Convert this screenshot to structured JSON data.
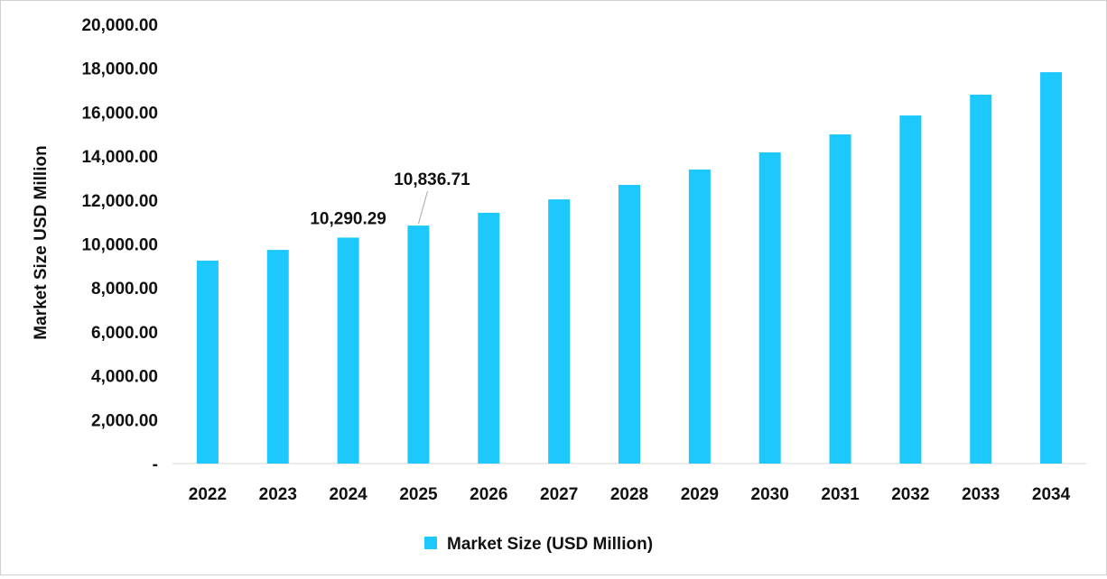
{
  "chart_data": {
    "type": "bar",
    "title": "",
    "xlabel": "",
    "ylabel": "Market Size USD Million",
    "ylim": [
      0,
      20000
    ],
    "yticks": [
      0,
      2000,
      4000,
      6000,
      8000,
      10000,
      12000,
      14000,
      16000,
      18000,
      20000
    ],
    "ytick_labels": [
      "-",
      "2,000.00",
      "4,000.00",
      "6,000.00",
      "8,000.00",
      "10,000.00",
      "12,000.00",
      "14,000.00",
      "16,000.00",
      "18,000.00",
      "20,000.00"
    ],
    "categories": [
      "2022",
      "2023",
      "2024",
      "2025",
      "2026",
      "2027",
      "2028",
      "2029",
      "2030",
      "2031",
      "2032",
      "2033",
      "2034"
    ],
    "series": [
      {
        "name": "Market Size (USD Million)",
        "color": "#1CC8FC",
        "values": [
          9240,
          9730,
          10290.29,
          10836.71,
          11420,
          12030,
          12690,
          13390,
          14170,
          14990,
          15850,
          16800,
          17820
        ]
      }
    ],
    "data_labels": [
      {
        "category": "2024",
        "text": "10,290.29"
      },
      {
        "category": "2025",
        "text": "10,836.71"
      }
    ],
    "grid": false,
    "legend": "bottom"
  }
}
